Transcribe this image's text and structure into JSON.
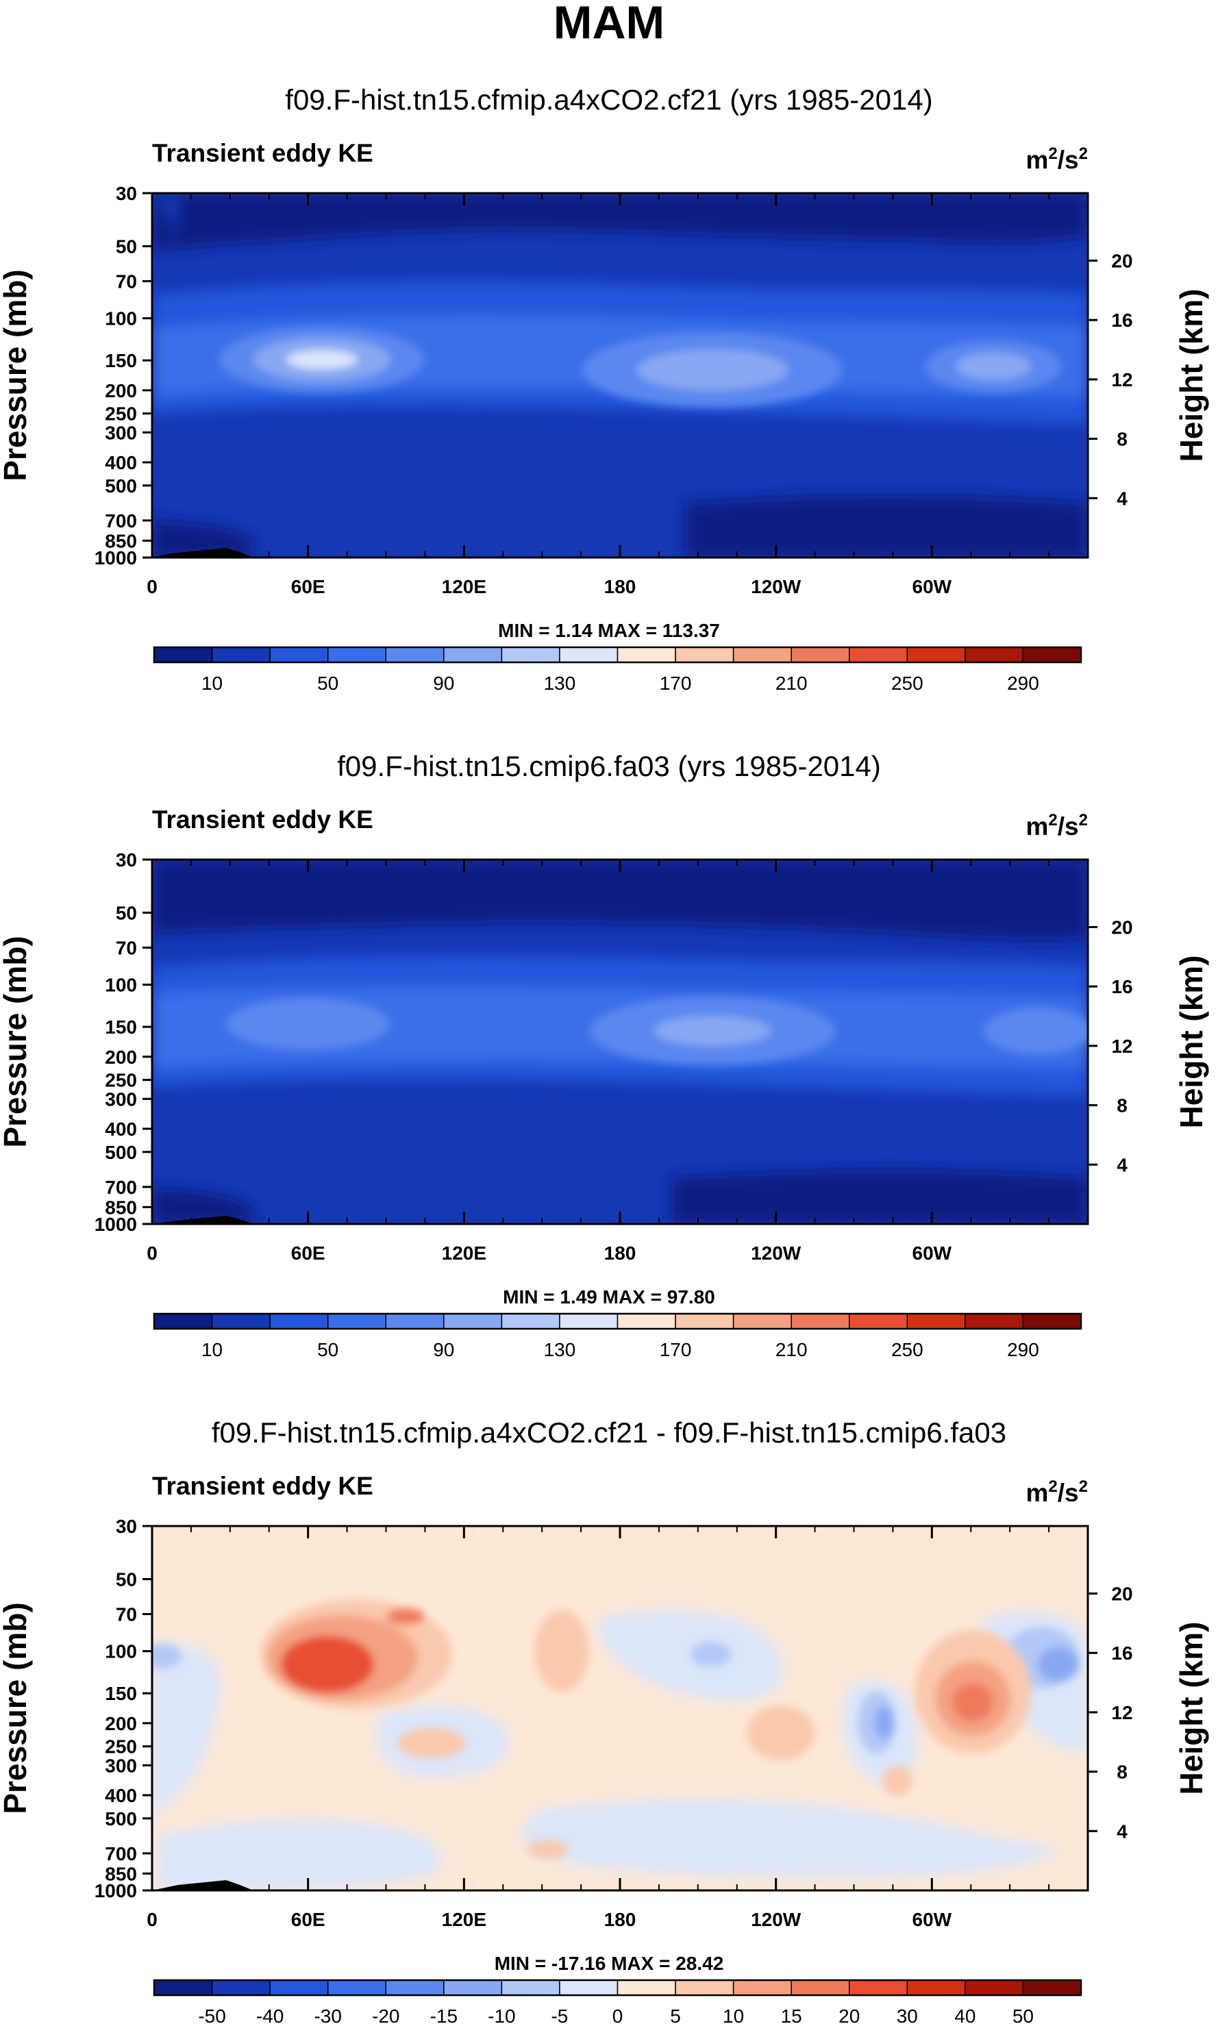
{
  "figure_title": "MAM",
  "chart_data": [
    {
      "type": "heatmap",
      "title": "f09.F-hist.tn15.cfmip.a4xCO2.cf21 (yrs 1985-2014)",
      "variable": "Transient eddy KE",
      "units": "m2/s2",
      "units_base": "m",
      "units_sup1": "2",
      "units_mid": "/s",
      "units_sup2": "2",
      "ylabel_left": "Pressure (mb)",
      "ylabel_right": "Height (km)",
      "x_ticks": [
        "0",
        "60E",
        "120E",
        "180",
        "120W",
        "60W"
      ],
      "pressure_ticks": [
        "30",
        "50",
        "70",
        "100",
        "150",
        "200",
        "250",
        "300",
        "400",
        "500",
        "700",
        "850",
        "1000"
      ],
      "height_ticks": [
        "20",
        "16",
        "12",
        "8",
        "4"
      ],
      "min_max_text": "MIN =   1.14  MAX = 113.37",
      "min": 1.14,
      "max": 113.37,
      "colorbar_labels": [
        "10",
        "50",
        "90",
        "130",
        "170",
        "210",
        "250",
        "290"
      ],
      "colorbar_colors": [
        "#0b1e83",
        "#1538b4",
        "#2457dc",
        "#3a6ee8",
        "#5a88ef",
        "#88a8f3",
        "#b2c8f6",
        "#dbe6fa",
        "#fde8d6",
        "#f9c9ae",
        "#f4a282",
        "#ee7a5c",
        "#e74f33",
        "#d23114",
        "#a71807",
        "#7a0a03"
      ]
    },
    {
      "type": "heatmap",
      "title": "f09.F-hist.tn15.cmip6.fa03 (yrs 1985-2014)",
      "variable": "Transient eddy KE",
      "units": "m2/s2",
      "units_base": "m",
      "units_sup1": "2",
      "units_mid": "/s",
      "units_sup2": "2",
      "ylabel_left": "Pressure (mb)",
      "ylabel_right": "Height (km)",
      "x_ticks": [
        "0",
        "60E",
        "120E",
        "180",
        "120W",
        "60W"
      ],
      "pressure_ticks": [
        "30",
        "50",
        "70",
        "100",
        "150",
        "200",
        "250",
        "300",
        "400",
        "500",
        "700",
        "850",
        "1000"
      ],
      "height_ticks": [
        "20",
        "16",
        "12",
        "8",
        "4"
      ],
      "min_max_text": "MIN =   1.49  MAX = 97.80",
      "min": 1.49,
      "max": 97.8,
      "colorbar_labels": [
        "10",
        "50",
        "90",
        "130",
        "170",
        "210",
        "250",
        "290"
      ],
      "colorbar_colors": [
        "#0b1e83",
        "#1538b4",
        "#2457dc",
        "#3a6ee8",
        "#5a88ef",
        "#88a8f3",
        "#b2c8f6",
        "#dbe6fa",
        "#fde8d6",
        "#f9c9ae",
        "#f4a282",
        "#ee7a5c",
        "#e74f33",
        "#d23114",
        "#a71807",
        "#7a0a03"
      ]
    },
    {
      "type": "heatmap",
      "title": "f09.F-hist.tn15.cfmip.a4xCO2.cf21 - f09.F-hist.tn15.cmip6.fa03",
      "variable": "Transient eddy KE",
      "units": "m2/s2",
      "units_base": "m",
      "units_sup1": "2",
      "units_mid": "/s",
      "units_sup2": "2",
      "ylabel_left": "Pressure (mb)",
      "ylabel_right": "Height (km)",
      "x_ticks": [
        "0",
        "60E",
        "120E",
        "180",
        "120W",
        "60W"
      ],
      "pressure_ticks": [
        "30",
        "50",
        "70",
        "100",
        "150",
        "200",
        "250",
        "300",
        "400",
        "500",
        "700",
        "850",
        "1000"
      ],
      "height_ticks": [
        "20",
        "16",
        "12",
        "8",
        "4"
      ],
      "min_max_text": "MIN = -17.16  MAX = 28.42",
      "min": -17.16,
      "max": 28.42,
      "colorbar_labels": [
        "-50",
        "-40",
        "-30",
        "-20",
        "-15",
        "-10",
        "-5",
        "0",
        "5",
        "10",
        "15",
        "20",
        "30",
        "40",
        "50"
      ],
      "colorbar_colors": [
        "#0b1e83",
        "#1538b4",
        "#2457dc",
        "#3a6ee8",
        "#5a88ef",
        "#88a8f3",
        "#b2c8f6",
        "#dbe6fa",
        "#fde8d6",
        "#f9c9ae",
        "#f4a282",
        "#ee7a5c",
        "#e74f33",
        "#d23114",
        "#a71807",
        "#7a0a03"
      ]
    }
  ]
}
